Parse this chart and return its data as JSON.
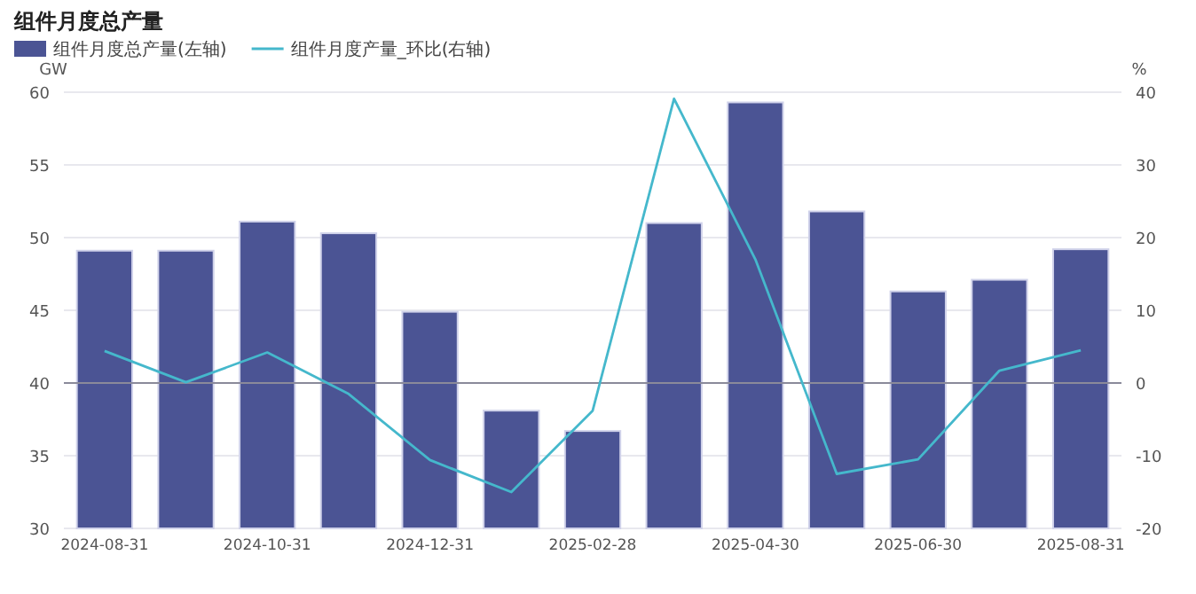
{
  "chart_data": {
    "type": "bar",
    "title": "组件月度总产量",
    "ylabel": "GW",
    "y2label": "%",
    "categories": [
      "2024-08-31",
      null,
      "2024-10-31",
      null,
      "2024-12-31",
      null,
      "2025-02-28",
      null,
      "2025-04-30",
      null,
      "2025-06-30",
      null,
      "2025-08-31"
    ],
    "series": [
      {
        "name": "组件月度总产量(左轴)",
        "color": "#4b5494",
        "values": [
          49.1,
          49.1,
          51.1,
          50.3,
          44.9,
          38.1,
          36.7,
          51.0,
          59.3,
          51.8,
          46.3,
          47.1,
          49.2
        ]
      },
      {
        "name": "组件月度产量_环比(右轴)",
        "type": "line",
        "axis": "y2",
        "color": "#45b8cc",
        "values": [
          4.4,
          0.1,
          4.2,
          -1.5,
          -10.6,
          -15.0,
          -3.8,
          39.1,
          17.0,
          -12.5,
          -10.5,
          1.7,
          4.5
        ]
      }
    ],
    "ylim": [
      30,
      60
    ],
    "yticks": [
      30,
      35,
      40,
      45,
      50,
      55,
      60
    ],
    "y2lim": [
      -20,
      40
    ],
    "y2ticks": [
      -20,
      -10,
      0,
      10,
      20,
      30,
      40
    ],
    "ref_lines": [
      {
        "axis": "y2",
        "value": 0,
        "color": "#8a8a9a"
      }
    ],
    "grid": "y",
    "legend": "top left",
    "marker": "none",
    "line_style": "solid"
  }
}
